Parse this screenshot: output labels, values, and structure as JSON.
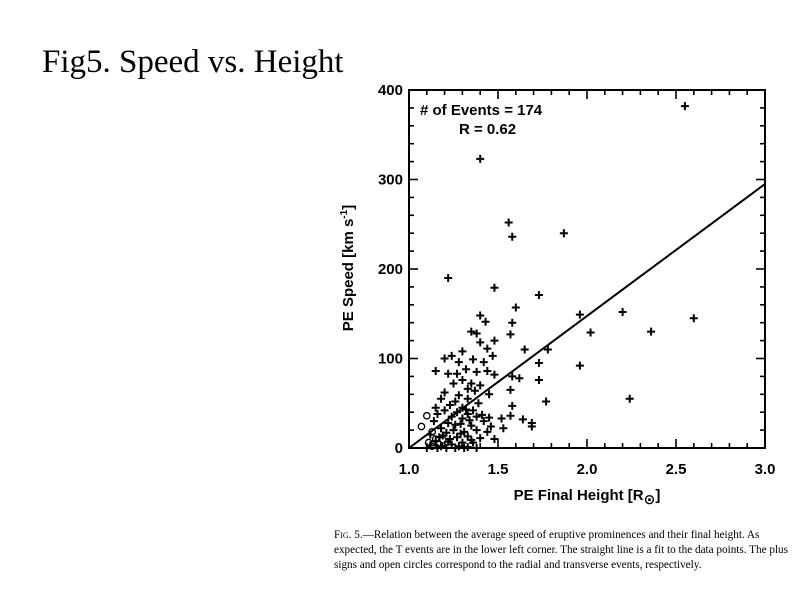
{
  "slide": {
    "title": "Fig5. Speed vs. Height"
  },
  "chart_data": {
    "type": "scatter",
    "xlabel": "PE Final Height [R",
    "xlabel_sun_symbol": "⊙",
    "xlabel_suffix": "]",
    "ylabel": "PE Speed [km s",
    "ylabel_exp": "-1",
    "ylabel_suffix": "]",
    "xlim": [
      1.0,
      3.0
    ],
    "ylim": [
      0,
      400
    ],
    "x_ticks": [
      1.0,
      1.5,
      2.0,
      2.5,
      3.0
    ],
    "x_tick_labels": [
      "1.0",
      "1.5",
      "2.0",
      "2.5",
      "3.0"
    ],
    "y_ticks": [
      0,
      100,
      200,
      300,
      400
    ],
    "y_tick_labels": [
      "0",
      "100",
      "200",
      "300",
      "400"
    ],
    "annotations": [
      "# of Events = 174",
      "R = 0.62"
    ],
    "fit_line": {
      "x": [
        1.0,
        3.0
      ],
      "y": [
        0,
        295
      ]
    },
    "series": [
      {
        "marker": "plus",
        "points": [
          [
            2.55,
            382
          ],
          [
            1.4,
            323
          ],
          [
            1.56,
            252
          ],
          [
            1.58,
            236
          ],
          [
            1.87,
            240
          ],
          [
            1.22,
            190
          ],
          [
            1.48,
            179
          ],
          [
            1.73,
            171
          ],
          [
            1.6,
            157
          ],
          [
            2.2,
            152
          ],
          [
            1.96,
            149
          ],
          [
            1.58,
            140
          ],
          [
            2.6,
            145
          ],
          [
            1.4,
            148
          ],
          [
            1.43,
            141
          ],
          [
            1.35,
            130
          ],
          [
            1.38,
            128
          ],
          [
            1.57,
            127
          ],
          [
            2.36,
            130
          ],
          [
            2.02,
            129
          ],
          [
            1.4,
            118
          ],
          [
            1.44,
            111
          ],
          [
            1.48,
            120
          ],
          [
            1.78,
            110
          ],
          [
            1.65,
            110
          ],
          [
            1.47,
            103
          ],
          [
            1.3,
            108
          ],
          [
            1.2,
            100
          ],
          [
            1.24,
            103
          ],
          [
            1.28,
            96
          ],
          [
            1.36,
            99
          ],
          [
            1.42,
            96
          ],
          [
            1.73,
            95
          ],
          [
            1.96,
            92
          ],
          [
            1.32,
            88
          ],
          [
            1.38,
            85
          ],
          [
            1.44,
            86
          ],
          [
            1.48,
            82
          ],
          [
            1.15,
            86
          ],
          [
            1.22,
            83
          ],
          [
            1.27,
            83
          ],
          [
            1.58,
            80
          ],
          [
            1.62,
            78
          ],
          [
            1.73,
            76
          ],
          [
            1.3,
            76
          ],
          [
            1.35,
            72
          ],
          [
            1.4,
            70
          ],
          [
            1.25,
            72
          ],
          [
            1.33,
            66
          ],
          [
            1.37,
            64
          ],
          [
            1.57,
            65
          ],
          [
            1.45,
            60
          ],
          [
            1.2,
            62
          ],
          [
            1.28,
            59
          ],
          [
            1.18,
            55
          ],
          [
            1.26,
            52
          ],
          [
            1.33,
            55
          ],
          [
            1.39,
            50
          ],
          [
            1.77,
            52
          ],
          [
            2.24,
            55
          ],
          [
            1.23,
            48
          ],
          [
            1.3,
            45
          ],
          [
            1.36,
            42
          ],
          [
            1.58,
            47
          ],
          [
            1.15,
            45
          ],
          [
            1.2,
            42
          ],
          [
            1.27,
            40
          ],
          [
            1.33,
            38
          ],
          [
            1.16,
            38
          ],
          [
            1.24,
            35
          ],
          [
            1.3,
            33
          ],
          [
            1.38,
            35
          ],
          [
            1.45,
            34
          ],
          [
            1.52,
            33
          ],
          [
            1.57,
            36
          ],
          [
            1.42,
            30
          ],
          [
            1.64,
            32
          ],
          [
            1.69,
            28
          ],
          [
            1.14,
            30
          ],
          [
            1.22,
            28
          ],
          [
            1.29,
            27
          ],
          [
            1.35,
            25
          ],
          [
            1.46,
            24
          ],
          [
            1.53,
            22
          ],
          [
            1.18,
            22
          ],
          [
            1.25,
            20
          ],
          [
            1.31,
            18
          ],
          [
            1.38,
            20
          ],
          [
            1.44,
            18
          ],
          [
            1.12,
            15
          ],
          [
            1.19,
            14
          ],
          [
            1.27,
            12
          ],
          [
            1.33,
            13
          ],
          [
            1.4,
            11
          ],
          [
            1.48,
            10
          ],
          [
            1.15,
            8
          ],
          [
            1.22,
            7
          ],
          [
            1.3,
            6
          ],
          [
            1.36,
            6
          ],
          [
            1.24,
            4
          ],
          [
            1.12,
            3
          ],
          [
            1.18,
            2
          ],
          [
            1.28,
            2
          ],
          [
            1.33,
            1
          ],
          [
            1.21,
            0
          ],
          [
            1.26,
            0
          ],
          [
            1.31,
            0
          ],
          [
            1.16,
            0
          ],
          [
            1.1,
            0
          ],
          [
            1.38,
            0
          ],
          [
            1.23,
            10
          ],
          [
            1.29,
            16
          ],
          [
            1.35,
            9
          ],
          [
            1.17,
            12
          ],
          [
            1.34,
            31
          ],
          [
            1.41,
            37
          ],
          [
            1.26,
            26
          ],
          [
            1.32,
            43
          ],
          [
            1.21,
            17
          ],
          [
            1.69,
            24
          ]
        ]
      },
      {
        "marker": "circle",
        "points": [
          [
            1.1,
            36
          ],
          [
            1.07,
            24
          ],
          [
            1.13,
            18
          ],
          [
            1.15,
            10
          ],
          [
            1.11,
            6
          ],
          [
            1.13,
            2
          ],
          [
            1.17,
            4
          ],
          [
            1.19,
            9
          ]
        ]
      }
    ]
  },
  "caption": {
    "fig_label": "Fig. 5.",
    "text": "—Relation between the average speed of eruptive prominences and their final height. As expected, the T events are in the lower left corner. The straight line is a fit to the data points. The plus signs and open circles correspond to the radial and transverse events, respectively."
  }
}
